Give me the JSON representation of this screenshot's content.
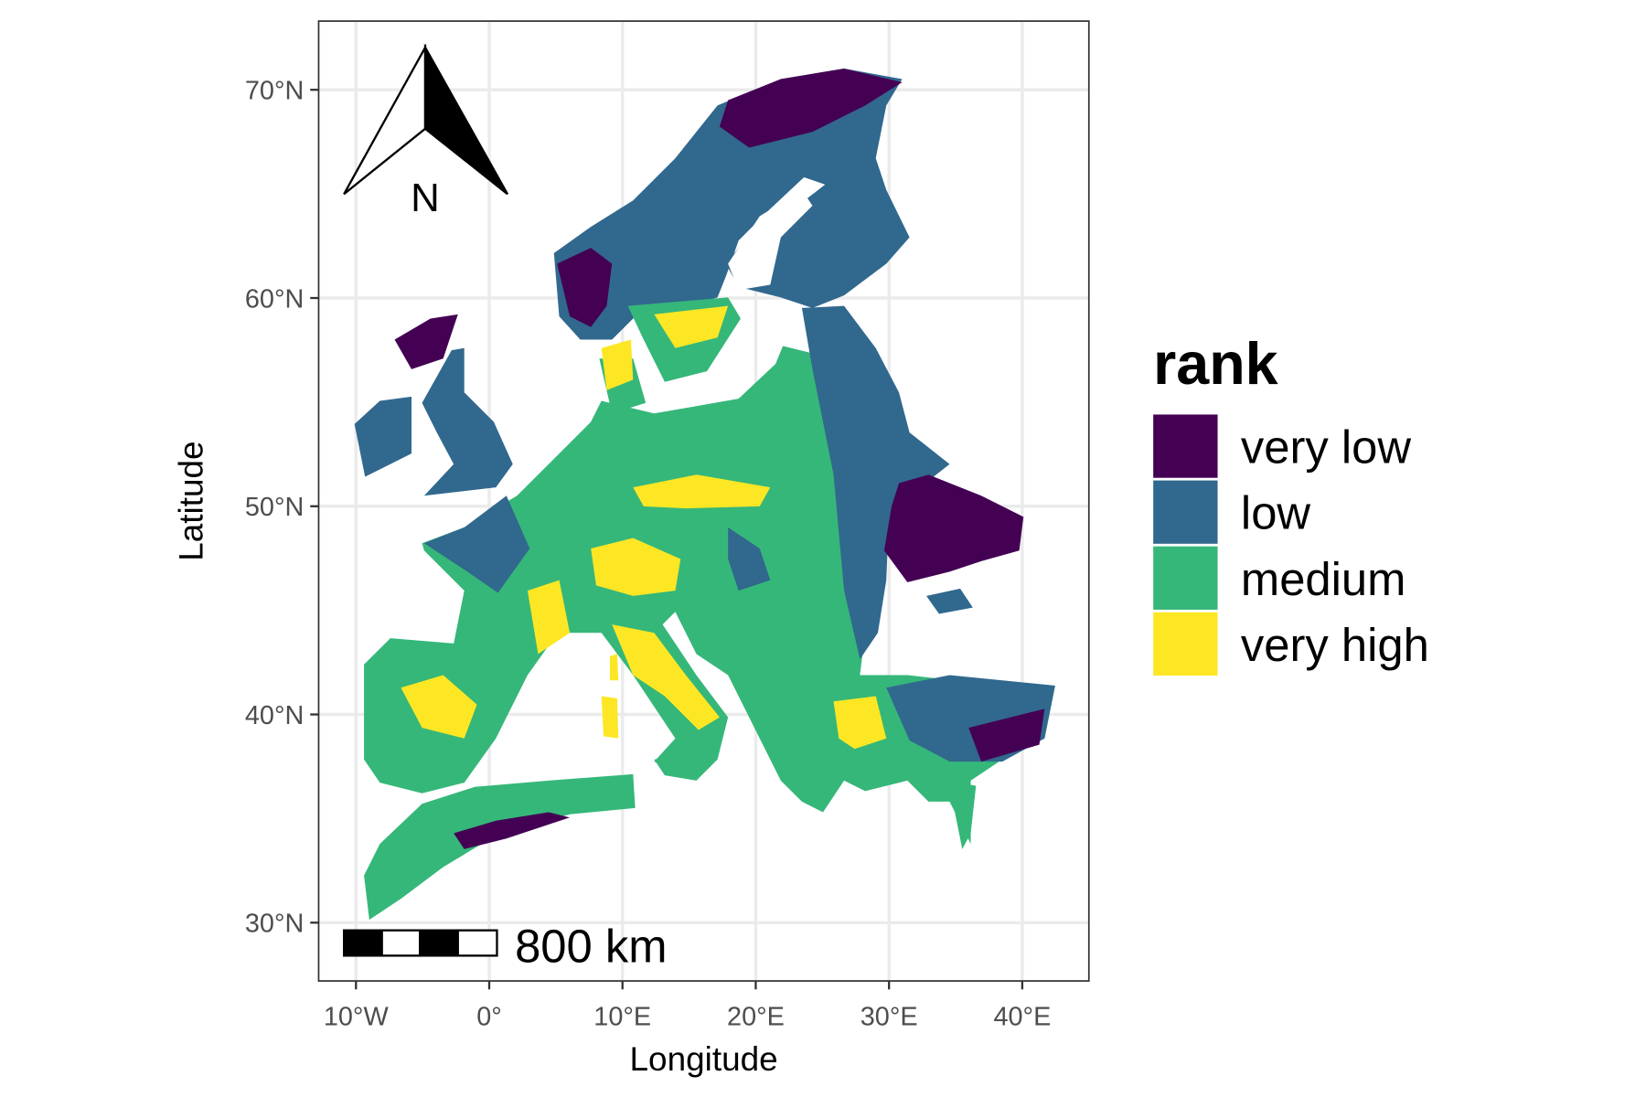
{
  "chart_data": {
    "type": "map",
    "title": "",
    "xlabel": "Longitude",
    "ylabel": "Latitude",
    "xlim": [
      -12.8,
      45.0
    ],
    "ylim": [
      27.2,
      73.3
    ],
    "grid": true,
    "x_ticks": [
      {
        "value": -10,
        "label": "10°W"
      },
      {
        "value": 0,
        "label": "0°"
      },
      {
        "value": 10,
        "label": "10°E"
      },
      {
        "value": 20,
        "label": "20°E"
      },
      {
        "value": 30,
        "label": "30°E"
      },
      {
        "value": 40,
        "label": "40°E"
      }
    ],
    "y_ticks": [
      {
        "value": 70,
        "label": "70°N"
      },
      {
        "value": 60,
        "label": "60°N"
      },
      {
        "value": 50,
        "label": "50°N"
      },
      {
        "value": 40,
        "label": "40°N"
      },
      {
        "value": 30,
        "label": "30°N"
      }
    ],
    "legend": {
      "title": "rank",
      "placement": "right",
      "items": [
        {
          "label": "very low",
          "color": "#440154"
        },
        {
          "label": "low",
          "color": "#31688E"
        },
        {
          "label": "medium",
          "color": "#35B779"
        },
        {
          "label": "very high",
          "color": "#FDE725"
        }
      ]
    },
    "north_arrow": {
      "label": "N",
      "placement": "top-left"
    },
    "scale_bar": {
      "label": "800 km",
      "placement": "bottom-left"
    }
  }
}
